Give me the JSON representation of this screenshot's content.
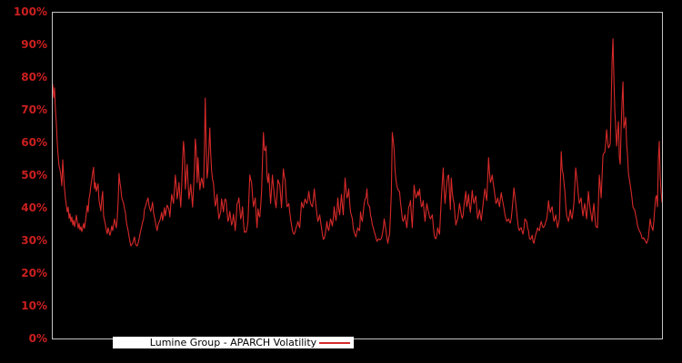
{
  "window": {
    "background": "#000000"
  },
  "colors": {
    "background": "#000000",
    "axis_border": "#c4c4c4",
    "tick_label": "#cc1f1f",
    "series": "#d62929",
    "legend_bg": "#ffffff",
    "legend_text": "#000000"
  },
  "legend": {
    "label": "Lumine Group - APARCH Volatility"
  },
  "chart_data": {
    "type": "line",
    "title": "",
    "xlabel": "",
    "ylabel": "",
    "ylim": [
      0,
      100
    ],
    "y_unit": "%",
    "grid": false,
    "legend_position": "bottom-left-inside",
    "x_tick_labels": [],
    "y_ticks": [
      {
        "value": 0,
        "label": "0%"
      },
      {
        "value": 10,
        "label": "10%"
      },
      {
        "value": 20,
        "label": "20%"
      },
      {
        "value": 30,
        "label": "30%"
      },
      {
        "value": 40,
        "label": "40%"
      },
      {
        "value": 50,
        "label": "50%"
      },
      {
        "value": 60,
        "label": "60%"
      },
      {
        "value": 70,
        "label": "70%"
      },
      {
        "value": 80,
        "label": "80%"
      },
      {
        "value": 90,
        "label": "90%"
      },
      {
        "value": 100,
        "label": "100%"
      }
    ],
    "series": [
      {
        "name": "Lumine Group - APARCH Volatility",
        "color": "#d62929",
        "unit": "%",
        "values": [
          78,
          74,
          77,
          70,
          66,
          60,
          56,
          53,
          52,
          50,
          47,
          55,
          50,
          46,
          43,
          41,
          39,
          40.5,
          37,
          38.5,
          36,
          37.5,
          35,
          36.5,
          34.5,
          36,
          38,
          36,
          34,
          35.5,
          33.5,
          34.5,
          33,
          34.2,
          35.5,
          34,
          36,
          38.5,
          41,
          39,
          43,
          44.5,
          47,
          48.9,
          51,
          52.7,
          46.1,
          48,
          45.3,
          46.5,
          47.6,
          42.5,
          41,
          39.3,
          43,
          45.3,
          37.8,
          36.5,
          35.1,
          33.5,
          32.3,
          34.2,
          33,
          31.9,
          33,
          34.7,
          33.3,
          35,
          36.9,
          35.5,
          34.2,
          36.9,
          42,
          50.8,
          48,
          46.1,
          43.3,
          42.5,
          41.6,
          40,
          38.9,
          36.1,
          34.5,
          33.3,
          31.5,
          30,
          28.6,
          29,
          29.4,
          30.5,
          31.4,
          29.4,
          28.8,
          28.6,
          29.5,
          30.6,
          32.2,
          33.5,
          34.7,
          36,
          36.9,
          39.7,
          40.5,
          41.6,
          42.5,
          43.3,
          41.1,
          40,
          39.2,
          40.5,
          42,
          38.9,
          37.5,
          36.1,
          34.5,
          33.3,
          35,
          35.8,
          36.4,
          37.5,
          38.9,
          36.4,
          38,
          40.3,
          37.8,
          39.5,
          41.1,
          40.5,
          39.7,
          37.5,
          41,
          44.4,
          43,
          41.6,
          46,
          50.3,
          47,
          43,
          45,
          48,
          44,
          40.5,
          47,
          55,
          60.6,
          57,
          46,
          50,
          53.6,
          48,
          43,
          45,
          47.5,
          44,
          40.5,
          46,
          52.2,
          61.4,
          58,
          48,
          55.6,
          50,
          45.8,
          48,
          49.4,
          48,
          46.4,
          58,
          73.9,
          60,
          49.4,
          52,
          58,
          64.7,
          57,
          51.7,
          49,
          48,
          44,
          40.8,
          42,
          44.4,
          40,
          36.9,
          38,
          39,
          43,
          41,
          39,
          42,
          43,
          42.5,
          39,
          36.1,
          37,
          39.2,
          37,
          35,
          36,
          38.3,
          36,
          33.3,
          37,
          41.6,
          42,
          43.3,
          40,
          36.9,
          38,
          40.6,
          36,
          32.8,
          33,
          32.8,
          34,
          36.1,
          43,
          50.3,
          49,
          48,
          44,
          40.6,
          42,
          43.3,
          38,
          34.2,
          40,
          38,
          37.5,
          41,
          45.3,
          55,
          63.3,
          58,
          57.8,
          59.2,
          50,
          48,
          50.8,
          46,
          41.6,
          46,
          50.3,
          47,
          44.4,
          42,
          40.3,
          44,
          48.9,
          48,
          47.5,
          44,
          40.3,
          46,
          52.2,
          50,
          48.9,
          44,
          40.6,
          41,
          41.6,
          39,
          36.9,
          35,
          33.3,
          32.5,
          32.2,
          33,
          34.2,
          35,
          36.1,
          35,
          34.2,
          38,
          42,
          41,
          40.3,
          42,
          43,
          42,
          41.6,
          43,
          45.3,
          43,
          41.6,
          41,
          40.6,
          43,
          46.1,
          43,
          40.8,
          38,
          36.1,
          37,
          38.1,
          36,
          34.2,
          32,
          30.6,
          31,
          32.2,
          34,
          36.1,
          34,
          33.3,
          35,
          36.9,
          36,
          34.7,
          37,
          40.6,
          38,
          36.4,
          39,
          43.3,
          40,
          38.1,
          41,
          44.4,
          41,
          38.1,
          44,
          49.4,
          46,
          43.3,
          44,
          46.1,
          42,
          38.9,
          38,
          36.9,
          34,
          32.8,
          32,
          31.4,
          33,
          34.2,
          33.5,
          33.3,
          39,
          37,
          36.1,
          39,
          41.6,
          43,
          43.3,
          46.1,
          41.6,
          41,
          40.6,
          38,
          36.9,
          35,
          34.2,
          33,
          32.2,
          31,
          30,
          30.5,
          30.8,
          30.5,
          30.6,
          31,
          32.2,
          34,
          36.9,
          35,
          33.3,
          31,
          29.4,
          31,
          32.2,
          38,
          45.3,
          63.3,
          61,
          58.3,
          52,
          48.9,
          47,
          46.1,
          45.5,
          45.3,
          42,
          39.7,
          37,
          36.1,
          37,
          38.1,
          36,
          34.2,
          37,
          40.6,
          41,
          42.5,
          38,
          34.2,
          41,
          47.2,
          45,
          43.3,
          44,
          45.3,
          44,
          46.1,
          43,
          40.6,
          41,
          42.5,
          39,
          36.1,
          39,
          41.6,
          40,
          38.9,
          37.5,
          36.9,
          37.5,
          38.1,
          35,
          32.2,
          31,
          30.8,
          32,
          34.2,
          33,
          32.2,
          38,
          43.3,
          48,
          52.5,
          46,
          41.6,
          45,
          48,
          50,
          50.3,
          45,
          39.7,
          49.4,
          45.3,
          43,
          41.6,
          38,
          35,
          36,
          36.9,
          39,
          41.6,
          40,
          38.1,
          37,
          38,
          41,
          43.3,
          45.3,
          40.6,
          42,
          44.4,
          41,
          38.9,
          42,
          45.6,
          43,
          41.6,
          43,
          43.9,
          40,
          36.9,
          38,
          39.7,
          38,
          36.4,
          39,
          41.6,
          44,
          46.1,
          44,
          42.5,
          49,
          55.6,
          51,
          48,
          49,
          50.3,
          48,
          46.1,
          44,
          41.6,
          42,
          43.3,
          42,
          40.6,
          43,
          44.9,
          43,
          41.6,
          40,
          38.1,
          37,
          36.1,
          36.5,
          36.9,
          36,
          35.6,
          37,
          39.7,
          43,
          46.4,
          44,
          41.6,
          39,
          36.1,
          34,
          33.3,
          34,
          34.2,
          33,
          32.2,
          34,
          36.9,
          36.5,
          36.1,
          34,
          33.3,
          31,
          30.6,
          31,
          31.9,
          30,
          29.4,
          31,
          32.2,
          33,
          34.2,
          33.5,
          33.3,
          35,
          36.1,
          35,
          34.2,
          34.5,
          35,
          36,
          36.9,
          39,
          42.5,
          40,
          38.9,
          40,
          40.6,
          38,
          36.1,
          37,
          38.1,
          36,
          34.2,
          35.5,
          36.9,
          47,
          57.5,
          52,
          50.8,
          48,
          45.3,
          41,
          37.8,
          37,
          36.1,
          38,
          39.7,
          38,
          36.9,
          39,
          41.6,
          47,
          52.5,
          50,
          47.2,
          44,
          41.6,
          42.5,
          43.3,
          40,
          37.8,
          40,
          41.6,
          39,
          36.9,
          41,
          45.3,
          42,
          39.7,
          38,
          36.1,
          39,
          41.6,
          38,
          34.7,
          34.4,
          34.2,
          42,
          50.3,
          47,
          43.3,
          50,
          56.4,
          57,
          57.2,
          60,
          64.2,
          61,
          58.6,
          59,
          60,
          72,
          85,
          92,
          80,
          70.3,
          65,
          59.2,
          63,
          66.7,
          55.6,
          53.6,
          65,
          73,
          78.8,
          64.7,
          66,
          68,
          60,
          56.4,
          50.8,
          49,
          47.2,
          45.3,
          43.3,
          40.6,
          40,
          39.7,
          38,
          36.9,
          35,
          34,
          33.3,
          32.8,
          32.2,
          31,
          30.8,
          31.1,
          30.5,
          30,
          29.4,
          30,
          31.1,
          34,
          36.9,
          35,
          34.2,
          33.3,
          36.1,
          40,
          43.3,
          44,
          40.6,
          55,
          60.6,
          50,
          45.3,
          42
        ]
      }
    ]
  }
}
